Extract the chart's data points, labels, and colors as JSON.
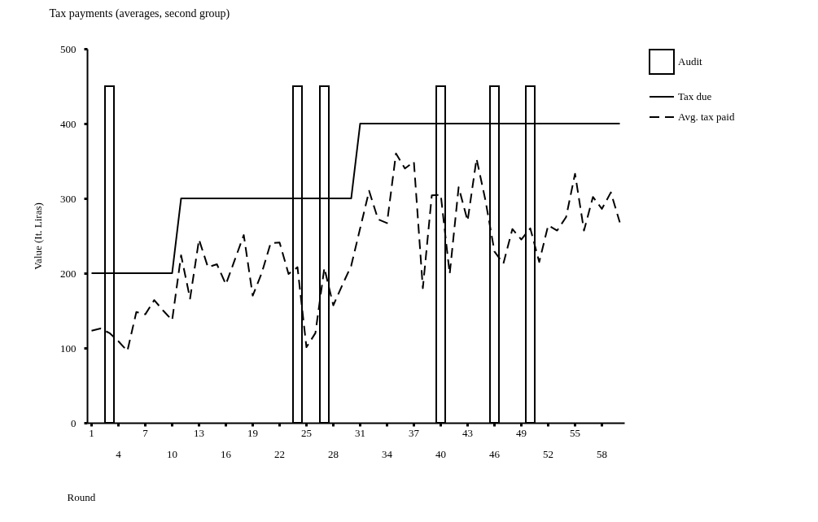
{
  "chart_data": {
    "type": "line",
    "title": "Tax payments (averages, second group)",
    "xlabel": "Round",
    "ylabel": "Value (It. Liras)",
    "categories": [
      "1",
      null,
      null,
      "4",
      null,
      null,
      "7",
      null,
      null,
      "10",
      null,
      null,
      "13",
      null,
      null,
      "16",
      null,
      null,
      "19",
      null,
      null,
      "22",
      null,
      null,
      "25",
      null,
      null,
      "28",
      null,
      null,
      "31",
      null,
      null,
      "34",
      null,
      null,
      "37",
      null,
      null,
      "40",
      null,
      null,
      "43",
      null,
      null,
      "46",
      null,
      null,
      "49",
      null,
      null,
      "52",
      null,
      null,
      "55",
      null,
      null,
      "58",
      null,
      null
    ],
    "series": [
      {
        "name": "Tax due",
        "color": "#000000",
        "line_style": "solid",
        "values": [
          200,
          200,
          200,
          200,
          200,
          200,
          200,
          200,
          200,
          200,
          300,
          300,
          300,
          300,
          300,
          300,
          300,
          300,
          300,
          300,
          300,
          300,
          300,
          300,
          300,
          300,
          300,
          300,
          300,
          300,
          400,
          400,
          400,
          400,
          400,
          400,
          400,
          400,
          400,
          400,
          400,
          400,
          400,
          400,
          400,
          400,
          400,
          400,
          400,
          400,
          400,
          400,
          400,
          400,
          400,
          400,
          400,
          400,
          400,
          400
        ]
      },
      {
        "name": "Avg. tax paid",
        "color": "#000000",
        "line_style": "dashed",
        "values": [
          123,
          126,
          120,
          109,
          96,
          148,
          145,
          164,
          150,
          137,
          224,
          166,
          245,
          208,
          212,
          185,
          218,
          251,
          170,
          200,
          240,
          241,
          199,
          208,
          101,
          120,
          207,
          157,
          184,
          210,
          260,
          310,
          272,
          267,
          360,
          340,
          349,
          180,
          304,
          305,
          199,
          315,
          270,
          353,
          297,
          229,
          213,
          259,
          245,
          260,
          215,
          264,
          257,
          275,
          333,
          257,
          302,
          286,
          308,
          268
        ]
      },
      {
        "name": "Audit",
        "type": "bar",
        "color": "#000000",
        "values": [
          null,
          null,
          450,
          null,
          null,
          null,
          null,
          null,
          null,
          null,
          null,
          null,
          null,
          null,
          null,
          null,
          null,
          null,
          null,
          null,
          null,
          null,
          null,
          450,
          null,
          null,
          450,
          null,
          null,
          null,
          null,
          null,
          null,
          null,
          null,
          null,
          null,
          null,
          null,
          450,
          null,
          null,
          null,
          null,
          null,
          450,
          null,
          null,
          null,
          450,
          null,
          null,
          null,
          null,
          null,
          null,
          null,
          null,
          null,
          null
        ]
      }
    ],
    "ylim": [
      0,
      500
    ],
    "yticks": [
      0,
      100,
      200,
      300,
      400,
      500
    ],
    "grid": false,
    "legend": "right"
  }
}
